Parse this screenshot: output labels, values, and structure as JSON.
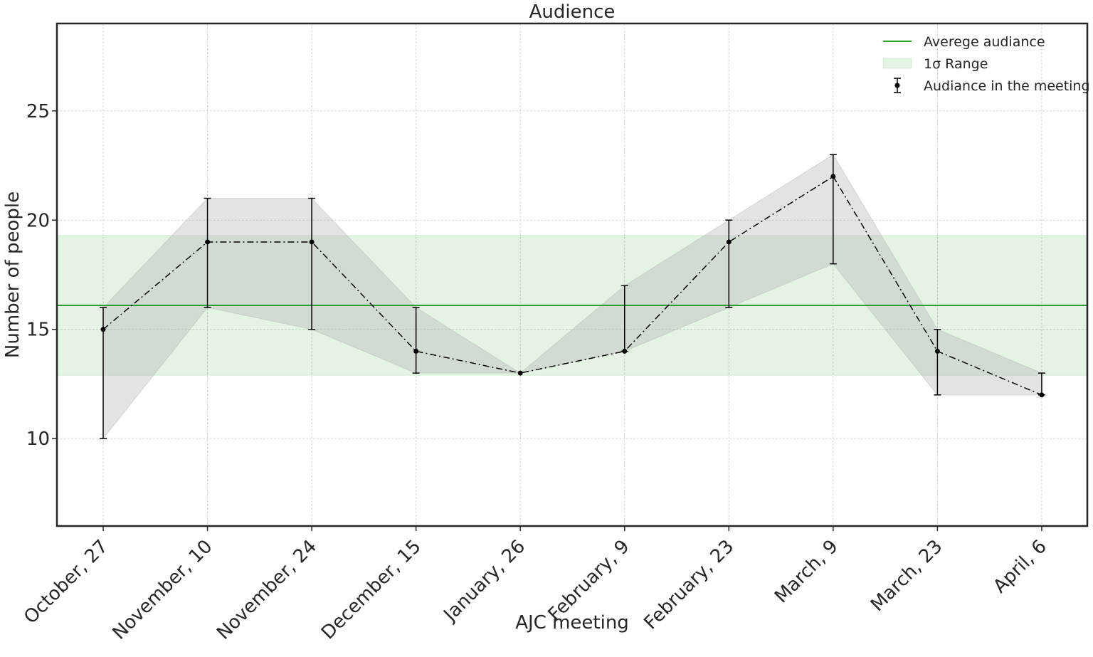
{
  "chart_data": {
    "type": "line",
    "title": "Audience",
    "xlabel": "AJC meeting",
    "ylabel": "Number of people",
    "categories": [
      "October, 27",
      "November, 10",
      "November, 24",
      "December, 15",
      "January, 26",
      "February, 9",
      "February, 23",
      "March, 9",
      "March, 23",
      "April, 6"
    ],
    "ylim": [
      6,
      29
    ],
    "yticks": [
      10,
      15,
      20,
      25
    ],
    "grid": true,
    "legend_position": "top-right",
    "series": [
      {
        "name": "Audiance in the meeting",
        "style": "dash-dot line with circle markers and error bars",
        "color": "#000000",
        "values": [
          15,
          19,
          19,
          14,
          13,
          14,
          19,
          22,
          14,
          12
        ],
        "error_low": [
          10,
          16,
          15,
          13,
          13,
          14,
          16,
          18,
          12,
          12
        ],
        "error_high": [
          16,
          21,
          21,
          16,
          13,
          17,
          20,
          23,
          15,
          13
        ]
      }
    ],
    "band": {
      "color": "#b0b0b0"
    },
    "average": {
      "name": "Averege audiance",
      "value": 16.1,
      "color": "#2ca02c"
    },
    "sigma_range": {
      "name": "1σ Range",
      "low": 12.9,
      "high": 19.3,
      "color": "#2ca02c"
    }
  }
}
